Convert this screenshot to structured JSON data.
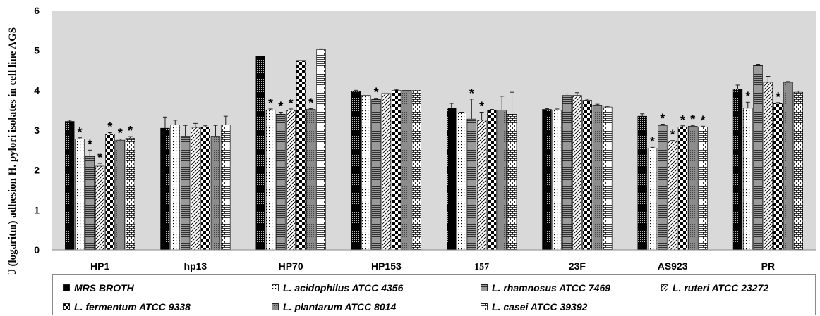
{
  "chart_data": {
    "type": "bar",
    "title": "",
    "xlabel": "",
    "ylabel": "CFU (logaritm) adhesion H. pylori isolates in cell line AGS",
    "ylim": [
      0,
      6
    ],
    "yticks": [
      "0",
      "1",
      "2",
      "3",
      "4",
      "5",
      "6"
    ],
    "grid": false,
    "legend_position": "bottom",
    "categories": [
      "HP1",
      "hp13",
      "HP70",
      "HP153",
      "157",
      "23F",
      "AS923",
      "PR"
    ],
    "series": [
      {
        "name": "MRS BROTH",
        "pattern": "solid-dots",
        "values": [
          3.22,
          3.05,
          4.85,
          3.97,
          3.55,
          3.52,
          3.35,
          4.03
        ],
        "errors": [
          0.03,
          0.28,
          0.0,
          0.03,
          0.12,
          0.02,
          0.06,
          0.1
        ]
      },
      {
        "name": "L. acidophilus ATCC 4356",
        "pattern": "dotted",
        "values": [
          2.78,
          3.13,
          3.5,
          3.87,
          3.43,
          3.5,
          2.55,
          3.55
        ],
        "errors": [
          0.03,
          0.12,
          0.03,
          0.0,
          0.02,
          0.03,
          0.02,
          0.15
        ]
      },
      {
        "name": "L. rhamnosus ATCC 7469",
        "pattern": "horizontal-lines",
        "values": [
          2.35,
          2.85,
          3.4,
          3.77,
          3.28,
          3.87,
          3.12,
          4.62
        ],
        "errors": [
          0.15,
          0.27,
          0.05,
          0.03,
          0.5,
          0.04,
          0.03,
          0.03
        ]
      },
      {
        "name": "L. ruteri ATCC 23272",
        "pattern": "diagonal",
        "values": [
          2.1,
          3.07,
          3.5,
          3.92,
          3.25,
          3.87,
          2.72,
          4.2
        ],
        "errors": [
          0.07,
          0.1,
          0.03,
          0.0,
          0.2,
          0.07,
          0.02,
          0.15
        ]
      },
      {
        "name": "L. fermentum ATCC 9338",
        "pattern": "checker",
        "values": [
          2.9,
          3.08,
          4.75,
          4.0,
          3.5,
          3.75,
          3.08,
          3.67
        ],
        "errors": [
          0.04,
          0.03,
          0.0,
          0.02,
          0.02,
          0.03,
          0.03,
          0.02
        ]
      },
      {
        "name": "L. plantarum ATCC 8014",
        "pattern": "fine-grid",
        "values": [
          2.75,
          2.85,
          3.52,
          4.0,
          3.5,
          3.63,
          3.1,
          4.2
        ],
        "errors": [
          0.03,
          0.27,
          0.02,
          0.0,
          0.35,
          0.02,
          0.02,
          0.02
        ]
      },
      {
        "name": "L. casei ATCC 39392",
        "pattern": "brick",
        "values": [
          2.8,
          3.13,
          5.02,
          4.0,
          3.4,
          3.58,
          3.08,
          3.95
        ],
        "errors": [
          0.04,
          0.22,
          0.02,
          0.0,
          0.55,
          0.02,
          0.02,
          0.03
        ]
      }
    ],
    "significance_marker": "*",
    "significant": [
      [
        false,
        true,
        true,
        true,
        true,
        true,
        true
      ],
      [
        false,
        false,
        false,
        false,
        false,
        false,
        false
      ],
      [
        false,
        true,
        true,
        true,
        false,
        true,
        false
      ],
      [
        false,
        false,
        true,
        false,
        false,
        false,
        false
      ],
      [
        false,
        false,
        true,
        true,
        false,
        false,
        false
      ],
      [
        false,
        false,
        false,
        false,
        false,
        false,
        false
      ],
      [
        false,
        true,
        true,
        true,
        true,
        true,
        true
      ],
      [
        false,
        true,
        false,
        false,
        true,
        false,
        false
      ]
    ]
  },
  "colors": {
    "plot_background": "#d9d9d9",
    "bar_outline": "#000000",
    "axis": "#8a8a8a"
  }
}
